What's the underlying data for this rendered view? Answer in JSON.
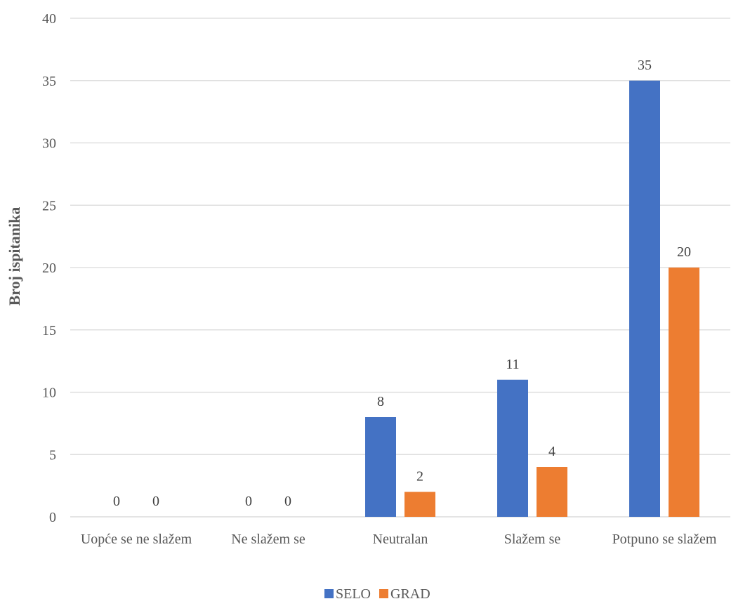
{
  "chart_data": {
    "type": "bar",
    "title": "",
    "xlabel": "",
    "ylabel": "Broj ispitanika",
    "ylim": [
      0,
      40
    ],
    "yticks": [
      0,
      5,
      10,
      15,
      20,
      25,
      30,
      35,
      40
    ],
    "grid": true,
    "legend_position": "bottom",
    "categories": [
      "Uopće se ne slažem",
      "Ne slažem se",
      "Neutralan",
      "Slažem se",
      "Potpuno se slažem"
    ],
    "series": [
      {
        "name": "SELO",
        "color": "#4472C4",
        "values": [
          0,
          0,
          8,
          11,
          35
        ]
      },
      {
        "name": "GRAD",
        "color": "#ED7D31",
        "values": [
          0,
          0,
          2,
          4,
          20
        ]
      }
    ],
    "data_labels": true
  }
}
